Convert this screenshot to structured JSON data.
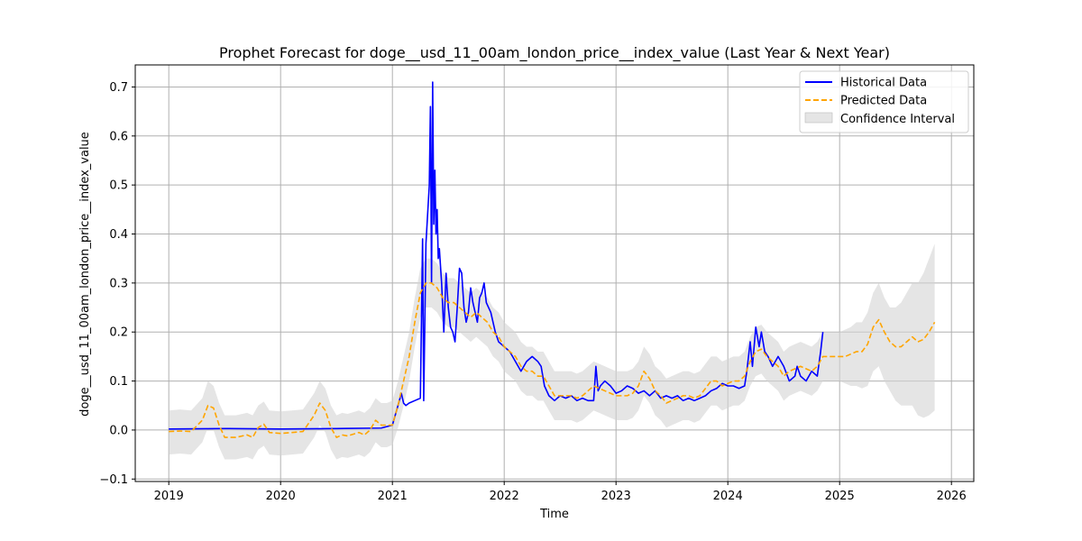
{
  "chart_data": {
    "type": "line",
    "title": "Prophet Forecast for doge__usd_11_00am_london_price__index_value (Last Year & Next Year)",
    "xlabel": "Time",
    "ylabel": "doge__usd_11_00am_london_price__index_value",
    "xlim": [
      2018.7,
      2026.2
    ],
    "ylim": [
      -0.105,
      0.745
    ],
    "x_ticks": [
      2019,
      2020,
      2021,
      2022,
      2023,
      2024,
      2025,
      2026
    ],
    "x_tick_labels": [
      "2019",
      "2020",
      "2021",
      "2022",
      "2023",
      "2024",
      "2025",
      "2026"
    ],
    "y_ticks": [
      -0.1,
      0.0,
      0.1,
      0.2,
      0.3,
      0.4,
      0.5,
      0.6,
      0.7
    ],
    "y_tick_labels": [
      "−0.1",
      "0.0",
      "0.1",
      "0.2",
      "0.3",
      "0.4",
      "0.5",
      "0.6",
      "0.7"
    ],
    "grid": true,
    "legend_position": "top-right",
    "colors": {
      "historical": "#0000ff",
      "predicted": "#ffa500",
      "confidence": "#d3d3d3"
    },
    "series": [
      {
        "name": "Historical Data",
        "style": "solid",
        "x": [
          2019.0,
          2019.5,
          2020.0,
          2020.5,
          2020.9,
          2021.0,
          2021.05,
          2021.08,
          2021.1,
          2021.12,
          2021.15,
          2021.2,
          2021.25,
          2021.27,
          2021.28,
          2021.3,
          2021.33,
          2021.34,
          2021.35,
          2021.36,
          2021.37,
          2021.38,
          2021.39,
          2021.4,
          2021.41,
          2021.42,
          2021.44,
          2021.46,
          2021.48,
          2021.5,
          2021.52,
          2021.54,
          2021.56,
          2021.58,
          2021.6,
          2021.62,
          2021.64,
          2021.66,
          2021.68,
          2021.7,
          2021.72,
          2021.74,
          2021.76,
          2021.78,
          2021.8,
          2021.82,
          2021.84,
          2021.86,
          2021.88,
          2021.9,
          2021.92,
          2021.95,
          2022.0,
          2022.05,
          2022.1,
          2022.15,
          2022.2,
          2022.25,
          2022.3,
          2022.33,
          2022.36,
          2022.4,
          2022.45,
          2022.5,
          2022.55,
          2022.6,
          2022.65,
          2022.7,
          2022.75,
          2022.8,
          2022.82,
          2022.84,
          2022.86,
          2022.9,
          2022.95,
          2023.0,
          2023.05,
          2023.1,
          2023.15,
          2023.2,
          2023.25,
          2023.3,
          2023.35,
          2023.4,
          2023.45,
          2023.5,
          2023.55,
          2023.6,
          2023.65,
          2023.7,
          2023.75,
          2023.8,
          2023.85,
          2023.9,
          2023.95,
          2024.0,
          2024.05,
          2024.1,
          2024.15,
          2024.17,
          2024.2,
          2024.22,
          2024.25,
          2024.28,
          2024.3,
          2024.33,
          2024.36,
          2024.4,
          2024.45,
          2024.5,
          2024.55,
          2024.6,
          2024.62,
          2024.65,
          2024.7,
          2024.75,
          2024.8,
          2024.83,
          2024.85
        ],
        "y": [
          0.002,
          0.003,
          0.002,
          0.003,
          0.004,
          0.01,
          0.05,
          0.075,
          0.055,
          0.05,
          0.055,
          0.06,
          0.065,
          0.39,
          0.06,
          0.38,
          0.5,
          0.66,
          0.3,
          0.71,
          0.42,
          0.53,
          0.4,
          0.45,
          0.35,
          0.37,
          0.3,
          0.2,
          0.32,
          0.25,
          0.21,
          0.2,
          0.18,
          0.25,
          0.33,
          0.32,
          0.25,
          0.22,
          0.24,
          0.29,
          0.26,
          0.24,
          0.22,
          0.27,
          0.28,
          0.3,
          0.26,
          0.25,
          0.24,
          0.22,
          0.2,
          0.18,
          0.17,
          0.16,
          0.14,
          0.12,
          0.14,
          0.15,
          0.14,
          0.13,
          0.09,
          0.07,
          0.06,
          0.07,
          0.065,
          0.07,
          0.06,
          0.065,
          0.06,
          0.06,
          0.13,
          0.08,
          0.09,
          0.1,
          0.09,
          0.075,
          0.08,
          0.09,
          0.085,
          0.075,
          0.08,
          0.07,
          0.08,
          0.065,
          0.07,
          0.065,
          0.07,
          0.06,
          0.065,
          0.06,
          0.065,
          0.07,
          0.08,
          0.085,
          0.095,
          0.09,
          0.09,
          0.085,
          0.09,
          0.12,
          0.18,
          0.13,
          0.21,
          0.17,
          0.2,
          0.16,
          0.15,
          0.13,
          0.15,
          0.13,
          0.1,
          0.11,
          0.13,
          0.11,
          0.1,
          0.12,
          0.11,
          0.16,
          0.2
        ]
      },
      {
        "name": "Predicted Data",
        "style": "dashed",
        "x": [
          2019.0,
          2019.1,
          2019.2,
          2019.3,
          2019.35,
          2019.4,
          2019.45,
          2019.5,
          2019.6,
          2019.7,
          2019.75,
          2019.8,
          2019.85,
          2019.9,
          2020.0,
          2020.1,
          2020.2,
          2020.3,
          2020.35,
          2020.4,
          2020.45,
          2020.5,
          2020.55,
          2020.6,
          2020.7,
          2020.75,
          2020.8,
          2020.85,
          2020.9,
          2020.95,
          2021.0,
          2021.05,
          2021.1,
          2021.15,
          2021.2,
          2021.25,
          2021.3,
          2021.35,
          2021.4,
          2021.45,
          2021.5,
          2021.55,
          2021.6,
          2021.65,
          2021.7,
          2021.75,
          2021.8,
          2021.85,
          2021.9,
          2021.95,
          2022.0,
          2022.05,
          2022.1,
          2022.15,
          2022.2,
          2022.25,
          2022.3,
          2022.35,
          2022.4,
          2022.45,
          2022.5,
          2022.55,
          2022.6,
          2022.65,
          2022.7,
          2022.75,
          2022.8,
          2022.85,
          2022.9,
          2022.95,
          2023.0,
          2023.05,
          2023.1,
          2023.15,
          2023.2,
          2023.25,
          2023.3,
          2023.35,
          2023.4,
          2023.45,
          2023.5,
          2023.55,
          2023.6,
          2023.65,
          2023.7,
          2023.75,
          2023.8,
          2023.85,
          2023.9,
          2023.95,
          2024.0,
          2024.05,
          2024.1,
          2024.15,
          2024.2,
          2024.25,
          2024.3,
          2024.35,
          2024.4,
          2024.45,
          2024.5,
          2024.55,
          2024.6,
          2024.65,
          2024.7,
          2024.75,
          2024.8,
          2024.85,
          2024.9,
          2024.95,
          2025.0,
          2025.05,
          2025.1,
          2025.15,
          2025.2,
          2025.25,
          2025.3,
          2025.35,
          2025.4,
          2025.45,
          2025.5,
          2025.55,
          2025.6,
          2025.65,
          2025.7,
          2025.75,
          2025.8,
          2025.85
        ],
        "y": [
          -0.003,
          -0.002,
          -0.003,
          0.02,
          0.05,
          0.045,
          0.01,
          -0.015,
          -0.015,
          -0.01,
          -0.015,
          0.005,
          0.012,
          -0.005,
          -0.007,
          -0.005,
          -0.003,
          0.03,
          0.055,
          0.04,
          0.005,
          -0.015,
          -0.01,
          -0.012,
          -0.005,
          -0.01,
          0.0,
          0.02,
          0.01,
          0.01,
          0.01,
          0.05,
          0.1,
          0.15,
          0.22,
          0.28,
          0.3,
          0.3,
          0.29,
          0.27,
          0.26,
          0.26,
          0.25,
          0.24,
          0.23,
          0.24,
          0.23,
          0.22,
          0.2,
          0.19,
          0.17,
          0.16,
          0.15,
          0.13,
          0.12,
          0.12,
          0.11,
          0.11,
          0.09,
          0.07,
          0.07,
          0.07,
          0.07,
          0.065,
          0.07,
          0.08,
          0.09,
          0.085,
          0.08,
          0.075,
          0.07,
          0.07,
          0.07,
          0.075,
          0.09,
          0.12,
          0.105,
          0.08,
          0.07,
          0.055,
          0.06,
          0.065,
          0.07,
          0.07,
          0.065,
          0.07,
          0.085,
          0.1,
          0.1,
          0.09,
          0.095,
          0.1,
          0.1,
          0.11,
          0.14,
          0.16,
          0.165,
          0.15,
          0.14,
          0.13,
          0.11,
          0.12,
          0.125,
          0.13,
          0.125,
          0.12,
          0.13,
          0.15,
          0.15,
          0.15,
          0.15,
          0.15,
          0.155,
          0.16,
          0.16,
          0.175,
          0.21,
          0.225,
          0.2,
          0.18,
          0.17,
          0.17,
          0.18,
          0.19,
          0.18,
          0.185,
          0.2,
          0.22
        ]
      }
    ],
    "confidence_interval": {
      "name": "Confidence Interval",
      "x": [
        2019.0,
        2019.1,
        2019.2,
        2019.3,
        2019.35,
        2019.4,
        2019.45,
        2019.5,
        2019.6,
        2019.7,
        2019.75,
        2019.8,
        2019.85,
        2019.9,
        2020.0,
        2020.1,
        2020.2,
        2020.3,
        2020.35,
        2020.4,
        2020.45,
        2020.5,
        2020.55,
        2020.6,
        2020.7,
        2020.75,
        2020.8,
        2020.85,
        2020.9,
        2020.95,
        2021.0,
        2021.05,
        2021.1,
        2021.15,
        2021.2,
        2021.25,
        2021.3,
        2021.35,
        2021.4,
        2021.45,
        2021.5,
        2021.55,
        2021.6,
        2021.65,
        2021.7,
        2021.75,
        2021.8,
        2021.85,
        2021.9,
        2021.95,
        2022.0,
        2022.05,
        2022.1,
        2022.15,
        2022.2,
        2022.25,
        2022.3,
        2022.35,
        2022.4,
        2022.45,
        2022.5,
        2022.55,
        2022.6,
        2022.65,
        2022.7,
        2022.75,
        2022.8,
        2022.85,
        2022.9,
        2022.95,
        2023.0,
        2023.05,
        2023.1,
        2023.15,
        2023.2,
        2023.25,
        2023.3,
        2023.35,
        2023.4,
        2023.45,
        2023.5,
        2023.55,
        2023.6,
        2023.65,
        2023.7,
        2023.75,
        2023.8,
        2023.85,
        2023.9,
        2023.95,
        2024.0,
        2024.05,
        2024.1,
        2024.15,
        2024.2,
        2024.25,
        2024.3,
        2024.35,
        2024.4,
        2024.45,
        2024.5,
        2024.55,
        2024.6,
        2024.65,
        2024.7,
        2024.75,
        2024.8,
        2024.85,
        2024.9,
        2024.95,
        2025.0,
        2025.05,
        2025.1,
        2025.15,
        2025.2,
        2025.25,
        2025.3,
        2025.35,
        2025.4,
        2025.45,
        2025.5,
        2025.55,
        2025.6,
        2025.65,
        2025.7,
        2025.75,
        2025.8,
        2025.85
      ],
      "upper": [
        0.04,
        0.042,
        0.04,
        0.065,
        0.1,
        0.09,
        0.055,
        0.03,
        0.03,
        0.035,
        0.03,
        0.05,
        0.058,
        0.04,
        0.038,
        0.04,
        0.042,
        0.075,
        0.1,
        0.085,
        0.05,
        0.03,
        0.035,
        0.033,
        0.04,
        0.035,
        0.045,
        0.065,
        0.055,
        0.055,
        0.06,
        0.1,
        0.15,
        0.2,
        0.27,
        0.33,
        0.35,
        0.35,
        0.34,
        0.32,
        0.31,
        0.31,
        0.3,
        0.29,
        0.28,
        0.29,
        0.28,
        0.27,
        0.25,
        0.24,
        0.22,
        0.21,
        0.2,
        0.18,
        0.17,
        0.17,
        0.16,
        0.16,
        0.14,
        0.12,
        0.12,
        0.12,
        0.12,
        0.115,
        0.12,
        0.13,
        0.14,
        0.135,
        0.13,
        0.125,
        0.12,
        0.12,
        0.12,
        0.125,
        0.14,
        0.17,
        0.155,
        0.13,
        0.12,
        0.105,
        0.11,
        0.115,
        0.12,
        0.12,
        0.115,
        0.12,
        0.135,
        0.15,
        0.15,
        0.14,
        0.145,
        0.15,
        0.15,
        0.16,
        0.19,
        0.21,
        0.215,
        0.2,
        0.19,
        0.18,
        0.16,
        0.17,
        0.175,
        0.18,
        0.175,
        0.17,
        0.18,
        0.2,
        0.2,
        0.2,
        0.2,
        0.205,
        0.21,
        0.22,
        0.22,
        0.24,
        0.28,
        0.3,
        0.27,
        0.25,
        0.25,
        0.26,
        0.28,
        0.3,
        0.3,
        0.32,
        0.35,
        0.38
      ],
      "lower": [
        -0.05,
        -0.048,
        -0.05,
        -0.025,
        0.005,
        0.0,
        -0.035,
        -0.06,
        -0.06,
        -0.055,
        -0.06,
        -0.04,
        -0.032,
        -0.05,
        -0.052,
        -0.05,
        -0.048,
        -0.015,
        0.01,
        -0.005,
        -0.04,
        -0.06,
        -0.055,
        -0.057,
        -0.05,
        -0.055,
        -0.045,
        -0.025,
        -0.035,
        -0.035,
        -0.03,
        0.005,
        0.05,
        0.1,
        0.17,
        0.23,
        0.25,
        0.25,
        0.24,
        0.22,
        0.21,
        0.21,
        0.2,
        0.19,
        0.18,
        0.19,
        0.18,
        0.17,
        0.15,
        0.14,
        0.12,
        0.11,
        0.1,
        0.08,
        0.07,
        0.07,
        0.06,
        0.06,
        0.04,
        0.02,
        0.02,
        0.02,
        0.02,
        0.015,
        0.02,
        0.03,
        0.04,
        0.035,
        0.03,
        0.025,
        0.02,
        0.02,
        0.02,
        0.025,
        0.04,
        0.07,
        0.055,
        0.03,
        0.02,
        0.005,
        0.01,
        0.015,
        0.02,
        0.02,
        0.015,
        0.02,
        0.035,
        0.05,
        0.05,
        0.04,
        0.045,
        0.05,
        0.05,
        0.06,
        0.09,
        0.11,
        0.115,
        0.1,
        0.09,
        0.08,
        0.06,
        0.07,
        0.075,
        0.08,
        0.075,
        0.07,
        0.08,
        0.1,
        0.1,
        0.1,
        0.1,
        0.095,
        0.09,
        0.09,
        0.085,
        0.09,
        0.12,
        0.13,
        0.1,
        0.08,
        0.06,
        0.05,
        0.05,
        0.05,
        0.03,
        0.025,
        0.03,
        0.04
      ]
    }
  }
}
